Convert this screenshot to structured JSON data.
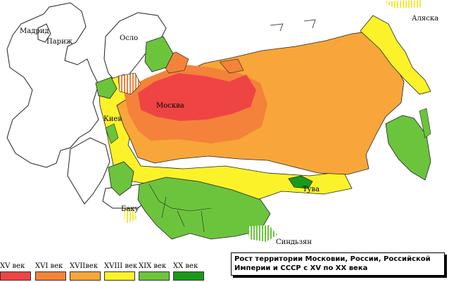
{
  "map": {
    "cities": {
      "madrid": "Мадрид",
      "paris": "Париж",
      "oslo": "Осло",
      "alaska": "Аляска",
      "moscow": "Москва",
      "kiev": "Киев",
      "baku": "Баку",
      "tuva": "Тува",
      "xinjiang": "Синдьзян"
    },
    "caption_line1": "Рост территории Московии, России, Российской",
    "caption_line2": "Империи и СССР с XV по XX века",
    "legend": [
      {
        "label": "XV век",
        "color": "#ef4444"
      },
      {
        "label": "XVI век",
        "color": "#f4823a"
      },
      {
        "label": "XVIIвек",
        "color": "#f8a63a"
      },
      {
        "label": "XVIII век",
        "color": "#fbf22a"
      },
      {
        "label": "XIX век",
        "color": "#6cc43c"
      },
      {
        "label": "XX век",
        "color": "#1a9a1a"
      }
    ],
    "colors": {
      "xv": "#ef4444",
      "xvi": "#f4823a",
      "xvii": "#f8a63a",
      "xviii": "#fbf22a",
      "xix": "#6cc43c",
      "xx": "#1a9a1a",
      "border": "#222222"
    }
  }
}
